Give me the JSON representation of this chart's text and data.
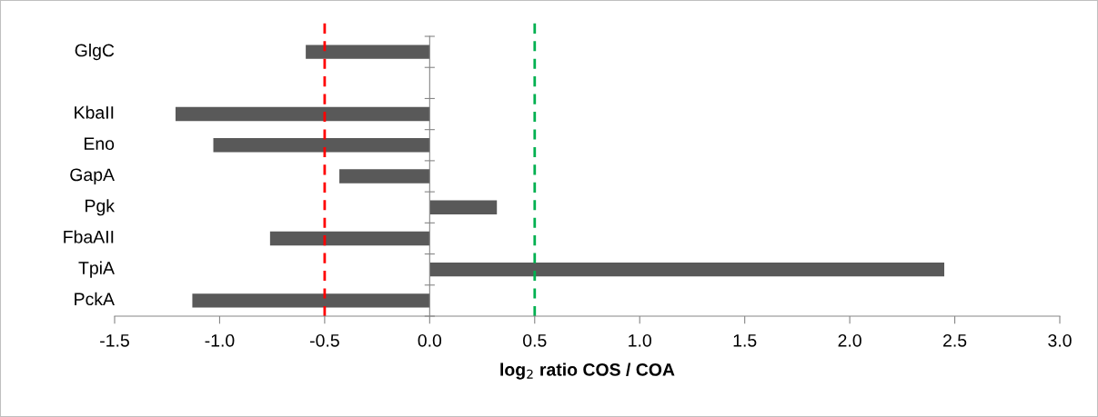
{
  "chart_data": {
    "type": "bar",
    "orientation": "horizontal",
    "categories": [
      "GlgC",
      null,
      "KbaII",
      "Eno",
      "GapA",
      "Pgk",
      "FbaAII",
      "TpiA",
      "PckA"
    ],
    "values": [
      -0.59,
      null,
      -1.21,
      -1.03,
      -0.43,
      0.32,
      -0.76,
      2.45,
      -1.13
    ],
    "color": "#595959",
    "xlabel": "log$_{2}$ ratio COS / COA",
    "xlim": [
      -1.5,
      3.0
    ],
    "xticks": [
      {
        "value": -1.5,
        "label": "-1.5"
      },
      {
        "value": -1.0,
        "label": "-1.0"
      },
      {
        "value": -0.5,
        "label": "-0.5"
      },
      {
        "value": 0.0,
        "label": "0.0"
      },
      {
        "value": 0.5,
        "label": "0.5"
      },
      {
        "value": 1.0,
        "label": "1.0"
      },
      {
        "value": 1.5,
        "label": "1.5"
      },
      {
        "value": 2.0,
        "label": "2.0"
      },
      {
        "value": 2.5,
        "label": "2.5"
      },
      {
        "value": 3.0,
        "label": "3.0"
      }
    ],
    "ref_lines": [
      {
        "axis": "x",
        "value": -0.5,
        "color": "#ff0000",
        "line_style": "dashed"
      },
      {
        "axis": "x",
        "value": 0.5,
        "color": "#00b050",
        "line_style": "dashed"
      }
    ],
    "grid": false,
    "legend": false
  }
}
